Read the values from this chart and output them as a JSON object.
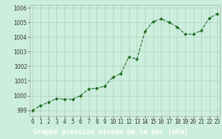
{
  "x": [
    0,
    1,
    2,
    3,
    4,
    5,
    6,
    7,
    8,
    9,
    10,
    11,
    12,
    13,
    14,
    15,
    16,
    17,
    18,
    19,
    20,
    21,
    22,
    23
  ],
  "y": [
    999.0,
    999.3,
    999.55,
    999.8,
    999.75,
    999.75,
    1000.0,
    1000.45,
    1000.5,
    1000.65,
    1001.25,
    1001.5,
    1002.65,
    1002.5,
    1004.4,
    1005.05,
    1005.25,
    1005.0,
    1004.7,
    1004.2,
    1004.2,
    1004.45,
    1005.3,
    1005.6
  ],
  "line_color": "#1f6b1f",
  "marker_color": "#1f6b1f",
  "plot_bg_color": "#cceedd",
  "fig_bg_color": "#cceedd",
  "label_bg_color": "#228B22",
  "label_text_color": "#ffffff",
  "grid_color": "#aaccbb",
  "title": "Graphe pression niveau de la mer (hPa)",
  "ylim": [
    998.6,
    1006.2
  ],
  "yticks": [
    999,
    1000,
    1001,
    1002,
    1003,
    1004,
    1005,
    1006
  ],
  "xlim": [
    -0.3,
    23.3
  ],
  "xticks": [
    0,
    1,
    2,
    3,
    4,
    5,
    6,
    7,
    8,
    9,
    10,
    11,
    12,
    13,
    14,
    15,
    16,
    17,
    18,
    19,
    20,
    21,
    22,
    23
  ],
  "tick_fontsize": 5.5,
  "title_fontsize": 7.0,
  "spine_color": "#aaaaaa"
}
